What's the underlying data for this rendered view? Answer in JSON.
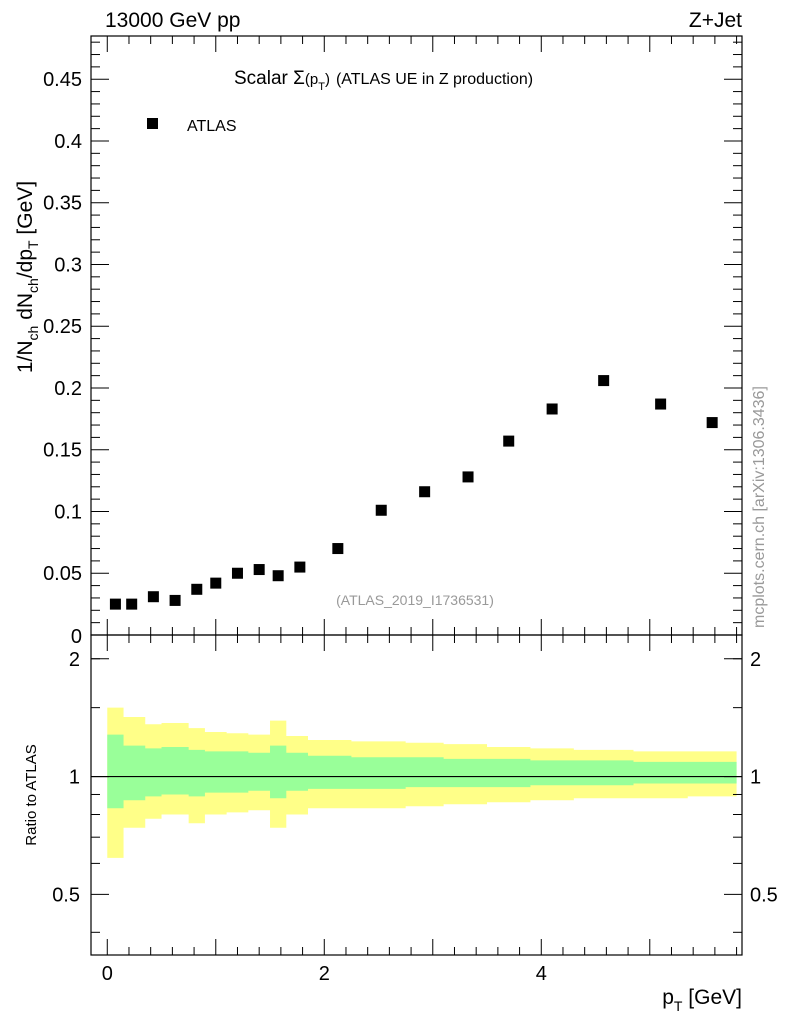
{
  "header": {
    "left": "13000 GeV pp",
    "right": "Z+Jet"
  },
  "watermark": "mcplots.cern.ch [arXiv:1306.3436]",
  "analysis_label": "(ATLAS_2019_I1736531)",
  "colors": {
    "yellow_band": "#ffff88",
    "green_band": "#99ff99",
    "marker": "#000000",
    "gray_text": "#999999"
  },
  "chart_data": [
    {
      "type": "scatter",
      "title_main": "Scalar Σ",
      "title_sym": "(p",
      "title_sub": "T",
      "title_close": ")",
      "title_rest": "(ATLAS UE in Z production)",
      "ylabel": "1/N_ch dN_ch/dp_T [GeV]",
      "ylabel_parts": {
        "a": "1/N",
        "b": "ch",
        "c": " dN",
        "d": "ch",
        "e": "/dp",
        "f": "T",
        "g": " [GeV]"
      },
      "ylim": [
        0,
        0.485
      ],
      "xlim": [
        -0.15,
        5.85
      ],
      "yticks": [
        {
          "v": 0.05,
          "label": "0.05"
        },
        {
          "v": 0.1,
          "label": "0.1"
        },
        {
          "v": 0.15,
          "label": "0.15"
        },
        {
          "v": 0.2,
          "label": "0.2"
        },
        {
          "v": 0.25,
          "label": "0.25"
        },
        {
          "v": 0.3,
          "label": "0.3"
        },
        {
          "v": 0.35,
          "label": "0.35"
        },
        {
          "v": 0.4,
          "label": "0.4"
        },
        {
          "v": 0.45,
          "label": "0.45"
        }
      ],
      "y_zero_label": "0",
      "legend": [
        {
          "name": "ATLAS",
          "marker": "square"
        }
      ],
      "series": [
        {
          "name": "ATLAS",
          "x": [
            0.075,
            0.225,
            0.425,
            0.625,
            0.825,
            1.0,
            1.2,
            1.4,
            1.575,
            1.775,
            2.125,
            2.525,
            2.925,
            3.325,
            3.7,
            4.1,
            4.575,
            5.1,
            5.575
          ],
          "y": [
            0.025,
            0.025,
            0.031,
            0.028,
            0.037,
            0.042,
            0.05,
            0.053,
            0.048,
            0.055,
            0.07,
            0.101,
            0.116,
            0.128,
            0.157,
            0.183,
            0.206,
            0.187,
            0.172
          ]
        }
      ]
    },
    {
      "type": "area",
      "ylabel": "Ratio to ATLAS",
      "xlabel": "p_T [GeV]",
      "xlabel_parts": {
        "a": "p",
        "b": "T",
        "c": " [GeV]"
      },
      "ylim": [
        0.35,
        2.3
      ],
      "xlim": [
        -0.15,
        5.85
      ],
      "xticks": [
        {
          "v": 0,
          "label": "0"
        },
        {
          "v": 2,
          "label": "2"
        },
        {
          "v": 4,
          "label": "4"
        }
      ],
      "yticks": [
        {
          "v": 0.5,
          "label": "0.5"
        },
        {
          "v": 1,
          "label": "1"
        },
        {
          "v": 2,
          "label": "2"
        }
      ],
      "reference_line": 1.0,
      "bins": [
        0.0,
        0.15,
        0.35,
        0.5,
        0.75,
        0.9,
        1.1,
        1.3,
        1.5,
        1.65,
        1.85,
        2.25,
        2.75,
        3.1,
        3.5,
        3.9,
        4.3,
        4.85,
        5.35,
        5.8
      ],
      "band_yellow": {
        "lo": [
          0.62,
          0.74,
          0.78,
          0.8,
          0.76,
          0.8,
          0.81,
          0.82,
          0.74,
          0.8,
          0.83,
          0.83,
          0.84,
          0.85,
          0.86,
          0.87,
          0.88,
          0.88,
          0.89
        ],
        "hi": [
          1.5,
          1.42,
          1.36,
          1.37,
          1.33,
          1.3,
          1.29,
          1.28,
          1.39,
          1.27,
          1.24,
          1.23,
          1.22,
          1.21,
          1.19,
          1.18,
          1.17,
          1.16,
          1.16
        ]
      },
      "band_green": {
        "lo": [
          0.83,
          0.87,
          0.89,
          0.9,
          0.89,
          0.91,
          0.91,
          0.92,
          0.88,
          0.92,
          0.93,
          0.93,
          0.94,
          0.94,
          0.94,
          0.95,
          0.95,
          0.96,
          0.96
        ],
        "hi": [
          1.28,
          1.2,
          1.18,
          1.19,
          1.17,
          1.16,
          1.16,
          1.15,
          1.2,
          1.15,
          1.13,
          1.12,
          1.12,
          1.11,
          1.11,
          1.1,
          1.1,
          1.09,
          1.09
        ]
      }
    }
  ]
}
